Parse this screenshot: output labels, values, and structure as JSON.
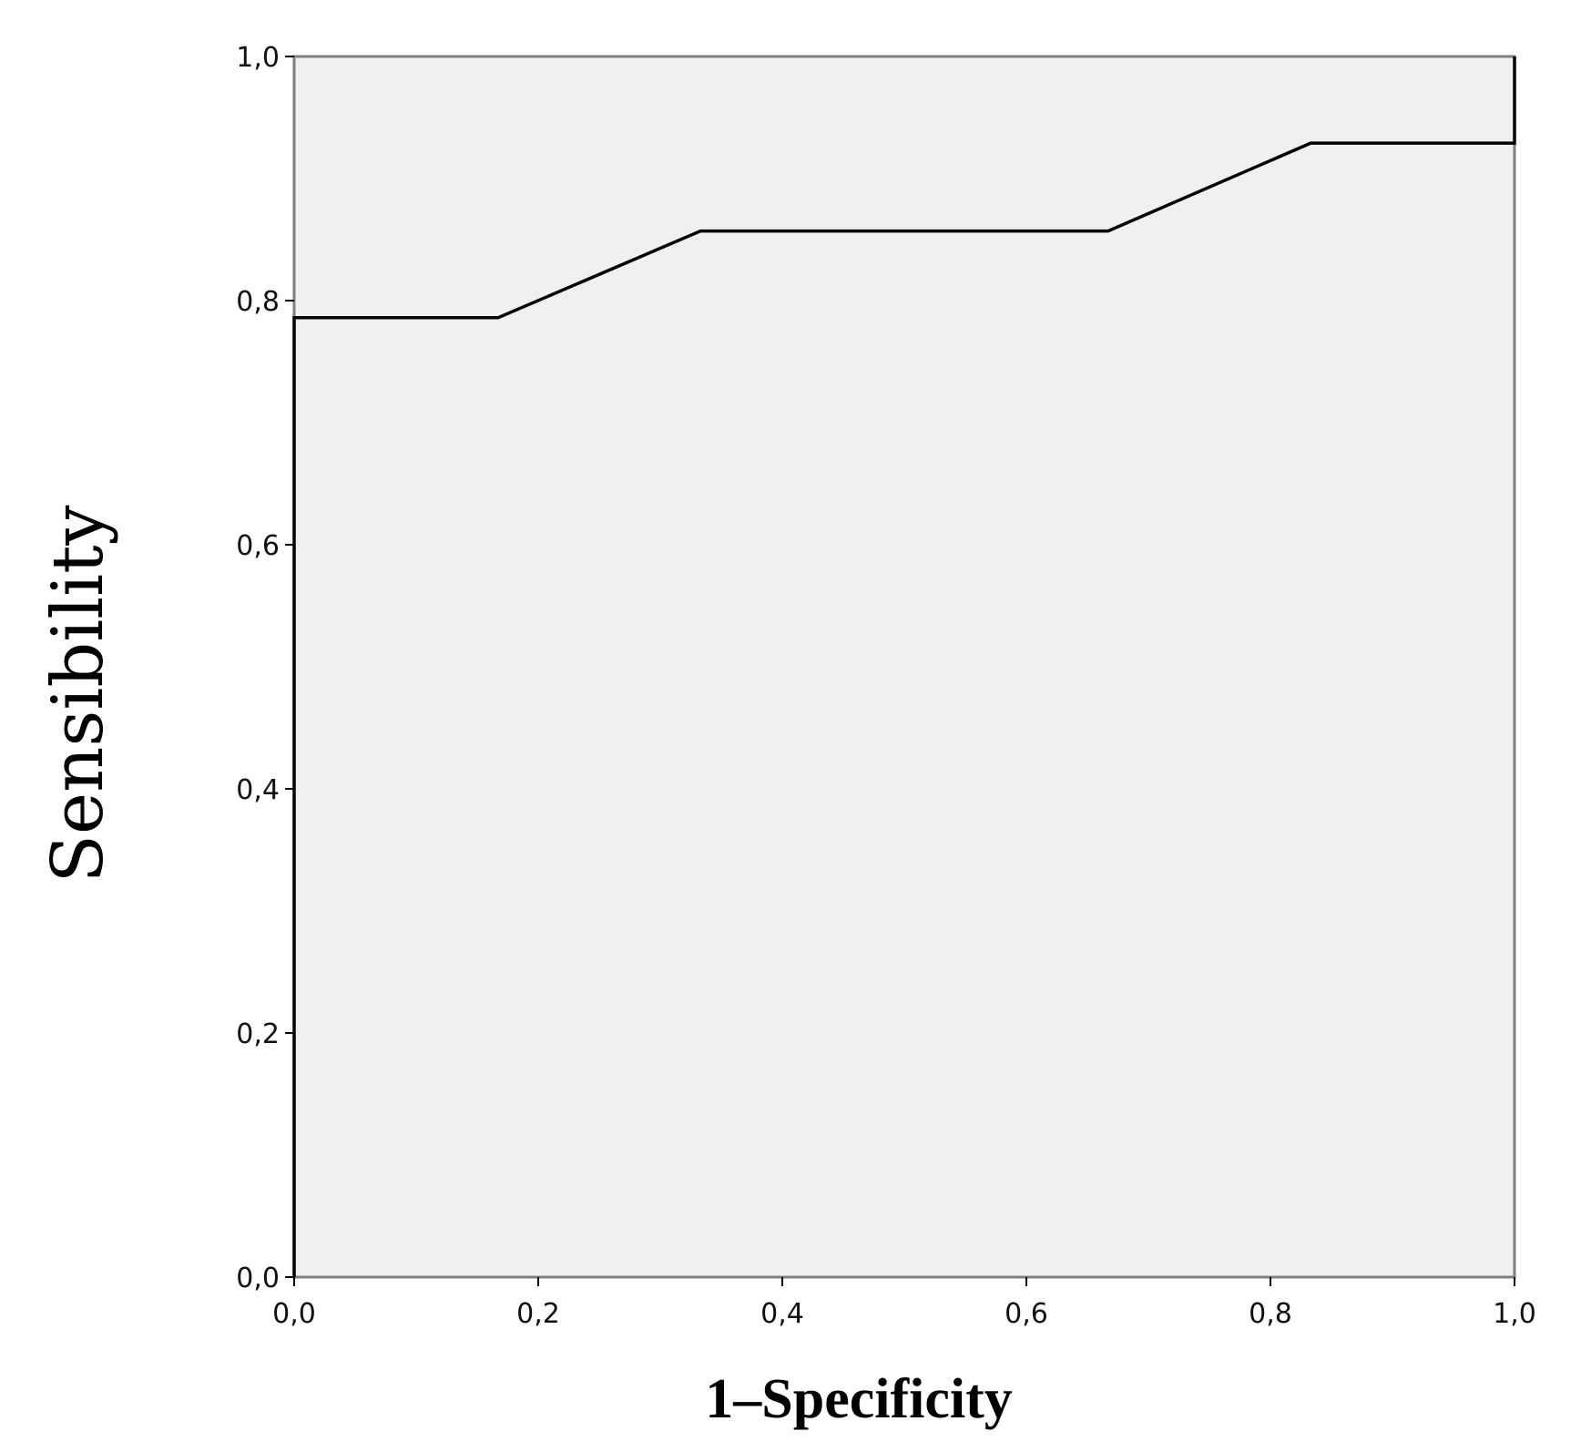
{
  "chart_data": {
    "type": "line",
    "xlabel": "1–Specificity",
    "ylabel": "Sensibility",
    "xlim": [
      0,
      1
    ],
    "ylim": [
      0,
      1
    ],
    "x_ticks": [
      "0,0",
      "0,2",
      "0,4",
      "0,6",
      "0,8",
      "1,0"
    ],
    "y_ticks": [
      "0,0",
      "0,2",
      "0,4",
      "0,6",
      "0,8",
      "1,0"
    ],
    "grid": false,
    "series": [
      {
        "x": [
          0.0,
          0.0,
          0.167,
          0.333,
          0.667,
          0.833,
          1.0,
          1.0
        ],
        "y": [
          0.0,
          0.786,
          0.786,
          0.857,
          0.857,
          0.929,
          0.929,
          1.0
        ]
      }
    ],
    "colors": {
      "plot_background": "#f0f0f0",
      "frame": "#808080",
      "curve": "#000000"
    }
  }
}
